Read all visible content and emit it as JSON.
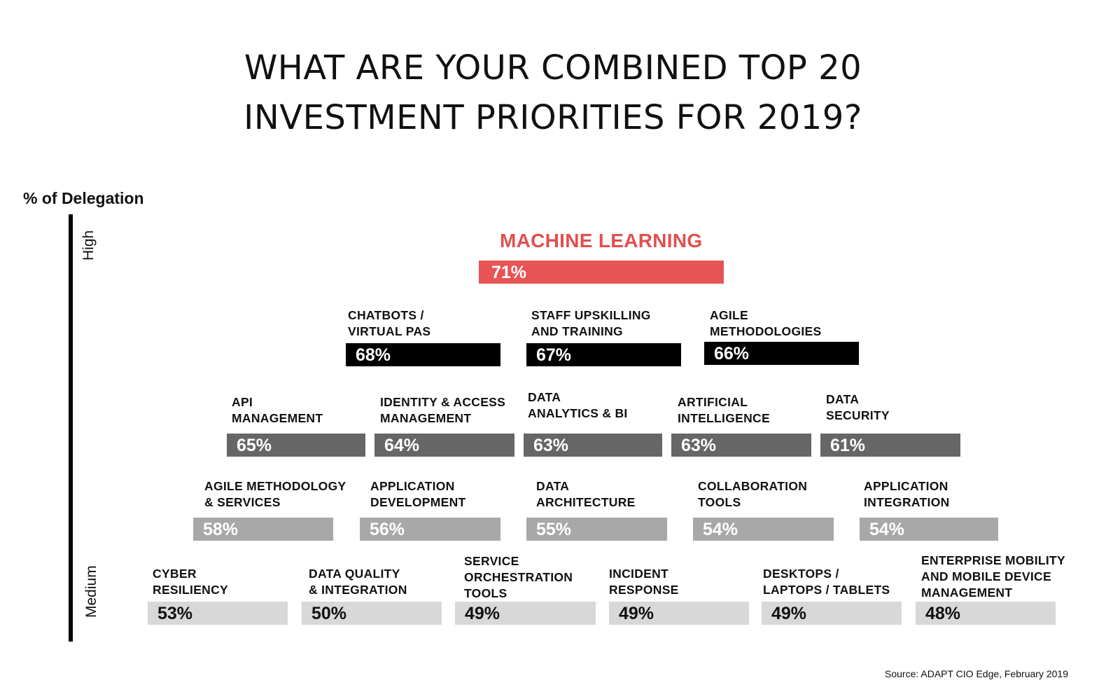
{
  "title_lines": [
    "WHAT ARE YOUR COMBINED TOP 20",
    "INVESTMENT PRIORITIES FOR 2019?"
  ],
  "y_axis_label": "% of Delegation",
  "y_levels": {
    "top": "High",
    "bottom": "Medium"
  },
  "source": "Source: ADAPT CIO Edge, February 2019",
  "colors": {
    "highlight": "#e85454",
    "tier1": "#000000",
    "tier2": "#666666",
    "tier3": "#a8a8a8",
    "tier4": "#d8d8d8"
  },
  "chart_data": {
    "type": "bar",
    "title": "WHAT ARE YOUR COMBINED TOP 20 INVESTMENT PRIORITIES FOR 2019?",
    "ylabel": "% of Delegation",
    "items": [
      {
        "label": [
          "MACHINE LEARNING"
        ],
        "value": 71,
        "value_label": "71%",
        "tier": 0
      },
      {
        "label": [
          "CHATBOTS /",
          "VIRTUAL PAS"
        ],
        "value": 68,
        "value_label": "68%",
        "tier": 1
      },
      {
        "label": [
          "STAFF UPSKILLING",
          "AND TRAINING"
        ],
        "value": 67,
        "value_label": "67%",
        "tier": 1
      },
      {
        "label": [
          "AGILE",
          "METHODOLOGIES"
        ],
        "value": 66,
        "value_label": "66%",
        "tier": 1
      },
      {
        "label": [
          "API",
          "MANAGEMENT"
        ],
        "value": 65,
        "value_label": "65%",
        "tier": 2
      },
      {
        "label": [
          "IDENTITY & ACCESS",
          "MANAGEMENT"
        ],
        "value": 64,
        "value_label": "64%",
        "tier": 2
      },
      {
        "label": [
          "DATA",
          "ANALYTICS & BI"
        ],
        "value": 63,
        "value_label": "63%",
        "tier": 2
      },
      {
        "label": [
          "ARTIFICIAL",
          "INTELLIGENCE"
        ],
        "value": 63,
        "value_label": "63%",
        "tier": 2
      },
      {
        "label": [
          "DATA",
          "SECURITY"
        ],
        "value": 61,
        "value_label": "61%",
        "tier": 2
      },
      {
        "label": [
          "AGILE METHODOLOGY",
          "& SERVICES"
        ],
        "value": 58,
        "value_label": "58%",
        "tier": 3
      },
      {
        "label": [
          "APPLICATION",
          "DEVELOPMENT"
        ],
        "value": 56,
        "value_label": "56%",
        "tier": 3
      },
      {
        "label": [
          "DATA",
          "ARCHITECTURE"
        ],
        "value": 55,
        "value_label": "55%",
        "tier": 3
      },
      {
        "label": [
          "COLLABORATION",
          "TOOLS"
        ],
        "value": 54,
        "value_label": "54%",
        "tier": 3
      },
      {
        "label": [
          "APPLICATION",
          "INTEGRATION"
        ],
        "value": 54,
        "value_label": "54%",
        "tier": 3
      },
      {
        "label": [
          "CYBER",
          "RESILIENCY"
        ],
        "value": 53,
        "value_label": "53%",
        "tier": 4
      },
      {
        "label": [
          "DATA QUALITY",
          "& INTEGRATION"
        ],
        "value": 50,
        "value_label": "50%",
        "tier": 4
      },
      {
        "label": [
          "SERVICE",
          "ORCHESTRATION",
          "TOOLS"
        ],
        "value": 49,
        "value_label": "49%",
        "tier": 4
      },
      {
        "label": [
          "INCIDENT",
          "RESPONSE"
        ],
        "value": 49,
        "value_label": "49%",
        "tier": 4
      },
      {
        "label": [
          "DESKTOPS /",
          "LAPTOPS / TABLETS"
        ],
        "value": 49,
        "value_label": "49%",
        "tier": 4
      },
      {
        "label": [
          "ENTERPRISE MOBILITY",
          "AND MOBILE DEVICE",
          "MANAGEMENT"
        ],
        "value": 48,
        "value_label": "48%",
        "tier": 4
      }
    ]
  }
}
